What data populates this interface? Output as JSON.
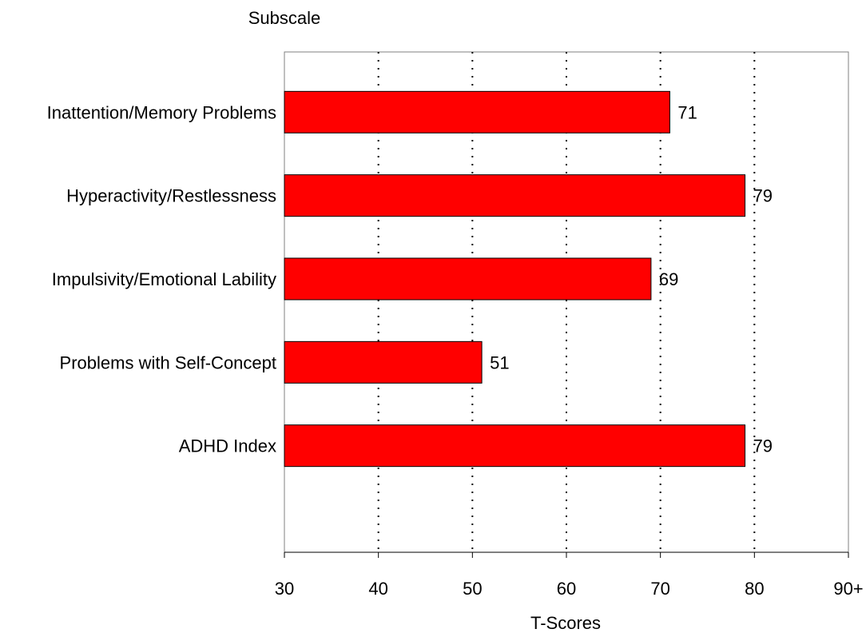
{
  "chart_data": {
    "type": "bar",
    "orientation": "horizontal",
    "title": "Subscale",
    "xlabel": "T-Scores",
    "ylabel": "Subscale",
    "categories": [
      "Inattention/Memory Problems",
      "Hyperactivity/Restlessness",
      "Impulsivity/Emotional Lability",
      "Problems with Self-Concept",
      "ADHD Index"
    ],
    "values": [
      71,
      79,
      69,
      51,
      79
    ],
    "xlim": [
      30,
      90
    ],
    "xticks": [
      30,
      40,
      50,
      60,
      70,
      80,
      90
    ],
    "xtick_labels": [
      "30",
      "40",
      "50",
      "60",
      "70",
      "80",
      "90+"
    ],
    "grid": "vertical dotted",
    "legend": "none",
    "bar_color": "#ff0000",
    "bar_edge_color": "#000000"
  }
}
